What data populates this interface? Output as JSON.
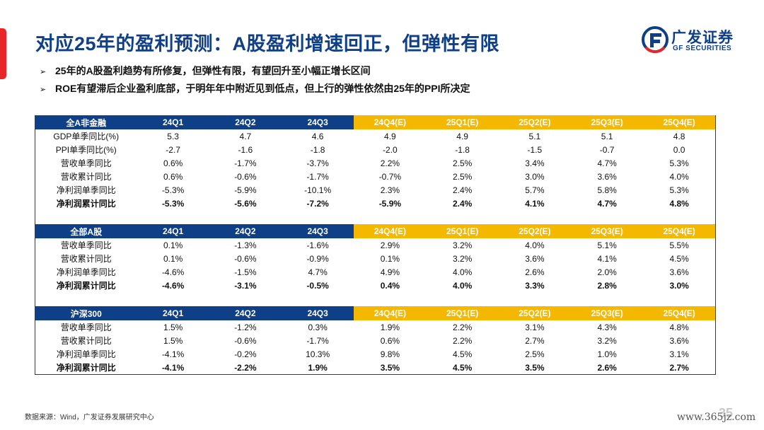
{
  "title": "对应25年的盈利预测：A股盈利增速回正，但弹性有限",
  "logo": {
    "cn": "广发证券",
    "en": "GF SECURITIES"
  },
  "bullets": [
    "25年的A股盈利趋势有所修复，但弹性有限，有望回升至小幅正增长区间",
    "ROE有望滞后企业盈利底部，于明年年中附近见到低点，但上行的弹性依然由25年的PPI所决定"
  ],
  "tables": [
    {
      "name": "全A非金融",
      "columns": [
        "24Q1",
        "24Q2",
        "24Q3",
        "24Q4(E)",
        "25Q1(E)",
        "25Q2(E)",
        "25Q3(E)",
        "25Q4(E)"
      ],
      "rows": [
        {
          "label": "GDP单季同比(%)",
          "values": [
            "5.3",
            "4.7",
            "4.6",
            "4.9",
            "4.9",
            "5.1",
            "5.1",
            "4.8"
          ]
        },
        {
          "label": "PPI单季同比(%)",
          "values": [
            "-2.7",
            "-1.6",
            "-1.8",
            "-2.0",
            "-1.8",
            "-1.5",
            "-0.7",
            "0.0"
          ]
        },
        {
          "label": "营收单季同比",
          "values": [
            "0.6%",
            "-1.7%",
            "-3.7%",
            "2.2%",
            "2.5%",
            "3.4%",
            "4.7%",
            "5.3%"
          ]
        },
        {
          "label": "营收累计同比",
          "values": [
            "0.6%",
            "-0.6%",
            "-1.7%",
            "-0.7%",
            "2.5%",
            "3.0%",
            "3.6%",
            "4.0%"
          ]
        },
        {
          "label": "净利润单季同比",
          "values": [
            "-5.3%",
            "-5.9%",
            "-10.1%",
            "2.3%",
            "2.4%",
            "5.7%",
            "5.8%",
            "5.3%"
          ]
        },
        {
          "label": "净利润累计同比",
          "values": [
            "-5.3%",
            "-5.6%",
            "-7.2%",
            "-5.9%",
            "2.4%",
            "4.1%",
            "4.7%",
            "4.8%"
          ]
        }
      ]
    },
    {
      "name": "全部A股",
      "columns": [
        "24Q1",
        "24Q2",
        "24Q3",
        "24Q4(E)",
        "25Q1(E)",
        "25Q2(E)",
        "25Q3(E)",
        "25Q4(E)"
      ],
      "rows": [
        {
          "label": "营收单季同比",
          "values": [
            "0.1%",
            "-1.3%",
            "-1.6%",
            "2.9%",
            "3.2%",
            "4.0%",
            "5.1%",
            "5.5%"
          ]
        },
        {
          "label": "营收累计同比",
          "values": [
            "0.1%",
            "-0.6%",
            "-0.9%",
            "0.1%",
            "3.2%",
            "3.6%",
            "4.1%",
            "4.5%"
          ]
        },
        {
          "label": "净利润单季同比",
          "values": [
            "-4.6%",
            "-1.5%",
            "4.7%",
            "4.9%",
            "4.0%",
            "2.6%",
            "2.0%",
            "3.6%"
          ]
        },
        {
          "label": "净利润累计同比",
          "values": [
            "-4.6%",
            "-3.1%",
            "-0.5%",
            "0.4%",
            "4.0%",
            "3.3%",
            "2.8%",
            "3.0%"
          ]
        }
      ]
    },
    {
      "name": "沪深300",
      "columns": [
        "24Q1",
        "24Q2",
        "24Q3",
        "24Q4(E)",
        "25Q1(E)",
        "25Q2(E)",
        "25Q3(E)",
        "25Q4(E)"
      ],
      "rows": [
        {
          "label": "营收单季同比",
          "values": [
            "1.5%",
            "-1.2%",
            "0.3%",
            "1.9%",
            "2.2%",
            "3.1%",
            "4.3%",
            "4.8%"
          ]
        },
        {
          "label": "营收累计同比",
          "values": [
            "1.5%",
            "-0.6%",
            "-1.7%",
            "0.6%",
            "2.2%",
            "2.7%",
            "3.2%",
            "3.6%"
          ]
        },
        {
          "label": "净利润单季同比",
          "values": [
            "-4.1%",
            "-0.2%",
            "10.3%",
            "9.8%",
            "4.5%",
            "2.5%",
            "1.0%",
            "3.1%"
          ]
        },
        {
          "label": "净利润累计同比",
          "values": [
            "-4.1%",
            "-2.2%",
            "1.9%",
            "3.5%",
            "4.5%",
            "3.5%",
            "2.6%",
            "2.7%"
          ]
        }
      ]
    }
  ],
  "footer": {
    "source": "数据来源：Wind，广发证券发展研究中心",
    "page_number": "35",
    "watermark": "www.365jz.com"
  },
  "colors": {
    "header_blue": "#0f3f86",
    "estimate_yellow": "#f5b800",
    "accent_red": "#e8262a",
    "title_blue": "#0f3f86"
  }
}
